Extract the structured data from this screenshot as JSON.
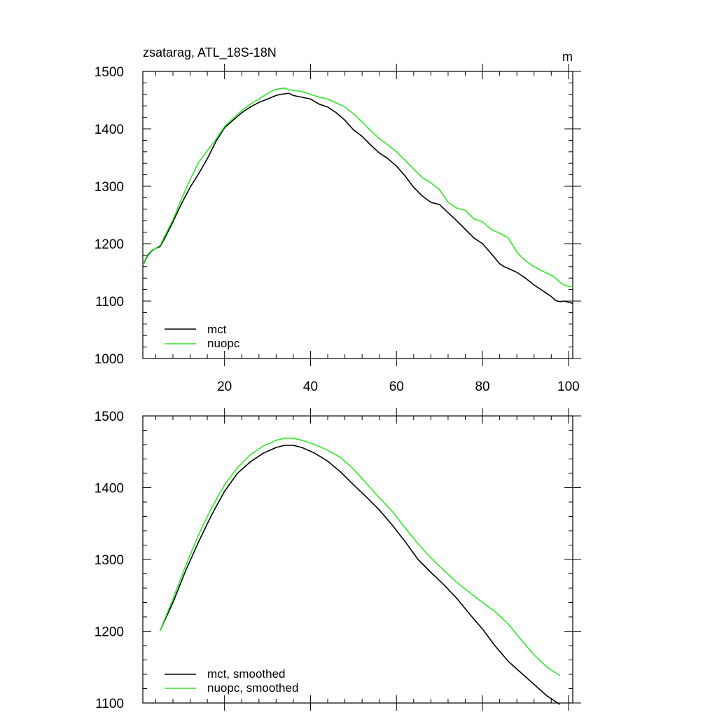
{
  "chart_data": [
    {
      "type": "line",
      "title": "zsatarag, ATL_18S-18N",
      "units": "m",
      "xlim": [
        1,
        101
      ],
      "ylim": [
        1000,
        1500
      ],
      "x_ticks": [
        20,
        40,
        60,
        80,
        100
      ],
      "y_ticks": [
        1000,
        1100,
        1200,
        1300,
        1400,
        1500
      ],
      "x_tick_labels": [
        "20",
        "40",
        "60",
        "80",
        "100"
      ],
      "y_tick_labels": [
        "1000",
        "1100",
        "1200",
        "1300",
        "1400",
        "1500"
      ],
      "legend": {
        "position": "bottom-left",
        "entries": [
          "mct",
          "nuopc"
        ]
      },
      "series": [
        {
          "name": "mct",
          "color": "#000000",
          "x": [
            1,
            2,
            3,
            4,
            5,
            6,
            8,
            10,
            12,
            14,
            16,
            18,
            20,
            22,
            24,
            26,
            28,
            30,
            32,
            33,
            34,
            35,
            36,
            38,
            40,
            42,
            44,
            46,
            48,
            50,
            52,
            54,
            56,
            58,
            60,
            62,
            64,
            66,
            68,
            70,
            72,
            74,
            76,
            78,
            80,
            82,
            84,
            85,
            86,
            88,
            90,
            92,
            94,
            96,
            97,
            98,
            99,
            100,
            101
          ],
          "values": [
            1162,
            1178,
            1187,
            1192,
            1195,
            1208,
            1238,
            1270,
            1298,
            1322,
            1348,
            1378,
            1402,
            1415,
            1428,
            1438,
            1446,
            1452,
            1458,
            1460,
            1461,
            1462,
            1458,
            1455,
            1452,
            1443,
            1438,
            1428,
            1415,
            1398,
            1387,
            1372,
            1358,
            1348,
            1335,
            1318,
            1298,
            1283,
            1272,
            1268,
            1254,
            1240,
            1225,
            1210,
            1200,
            1183,
            1165,
            1160,
            1157,
            1150,
            1140,
            1128,
            1118,
            1108,
            1101,
            1099,
            1100,
            1098,
            1096
          ]
        },
        {
          "name": "nuopc",
          "color": "#33e52b",
          "x": [
            1,
            2,
            3,
            4,
            5,
            6,
            8,
            10,
            12,
            14,
            16,
            18,
            20,
            22,
            24,
            26,
            28,
            30,
            32,
            33,
            34,
            35,
            36,
            38,
            40,
            42,
            44,
            46,
            48,
            50,
            52,
            54,
            56,
            58,
            60,
            62,
            64,
            66,
            68,
            70,
            72,
            74,
            76,
            78,
            80,
            82,
            84,
            86,
            88,
            90,
            92,
            94,
            96,
            97,
            98,
            99,
            100,
            101
          ],
          "values": [
            1163,
            1180,
            1188,
            1192,
            1197,
            1212,
            1242,
            1278,
            1312,
            1342,
            1362,
            1382,
            1404,
            1418,
            1432,
            1443,
            1452,
            1462,
            1469,
            1470,
            1471,
            1468,
            1467,
            1465,
            1460,
            1455,
            1452,
            1445,
            1438,
            1426,
            1412,
            1397,
            1383,
            1372,
            1360,
            1345,
            1330,
            1315,
            1306,
            1294,
            1272,
            1262,
            1258,
            1243,
            1238,
            1225,
            1218,
            1210,
            1185,
            1170,
            1160,
            1152,
            1145,
            1140,
            1133,
            1128,
            1126,
            1125
          ]
        }
      ]
    },
    {
      "type": "line",
      "title": "",
      "xlim": [
        1,
        101
      ],
      "ylim": [
        1100,
        1500
      ],
      "x_ticks": [
        20,
        40,
        60,
        80,
        100
      ],
      "y_ticks": [
        1100,
        1200,
        1300,
        1400,
        1500
      ],
      "x_tick_labels": [],
      "y_tick_labels": [
        "1100",
        "1200",
        "1300",
        "1400",
        "1500"
      ],
      "legend": {
        "position": "bottom-left",
        "entries": [
          "mct, smoothed",
          "nuopc, smoothed"
        ]
      },
      "series": [
        {
          "name": "mct, smoothed",
          "color": "#000000",
          "x": [
            5,
            8,
            11,
            14,
            17,
            20,
            23,
            26,
            29,
            32,
            34,
            36,
            38,
            41,
            44,
            47,
            50,
            53,
            56,
            59,
            62,
            65,
            68,
            71,
            74,
            77,
            80,
            83,
            86,
            89,
            92,
            95,
            98
          ],
          "values": [
            1201,
            1240,
            1285,
            1325,
            1362,
            1395,
            1420,
            1436,
            1448,
            1456,
            1459,
            1459,
            1456,
            1448,
            1437,
            1422,
            1404,
            1387,
            1369,
            1348,
            1325,
            1300,
            1282,
            1265,
            1246,
            1224,
            1203,
            1179,
            1158,
            1142,
            1126,
            1110,
            1098
          ]
        },
        {
          "name": "nuopc, smoothed",
          "color": "#33e52b",
          "x": [
            5,
            8,
            11,
            14,
            17,
            20,
            23,
            26,
            29,
            32,
            34,
            36,
            38,
            41,
            44,
            47,
            50,
            53,
            56,
            59,
            62,
            65,
            68,
            71,
            74,
            77,
            80,
            83,
            86,
            89,
            92,
            95,
            98
          ],
          "values": [
            1201,
            1245,
            1292,
            1335,
            1372,
            1404,
            1428,
            1446,
            1458,
            1466,
            1469,
            1469,
            1466,
            1460,
            1452,
            1442,
            1426,
            1406,
            1386,
            1367,
            1344,
            1322,
            1302,
            1285,
            1268,
            1254,
            1240,
            1227,
            1210,
            1188,
            1167,
            1150,
            1138
          ]
        }
      ]
    }
  ]
}
